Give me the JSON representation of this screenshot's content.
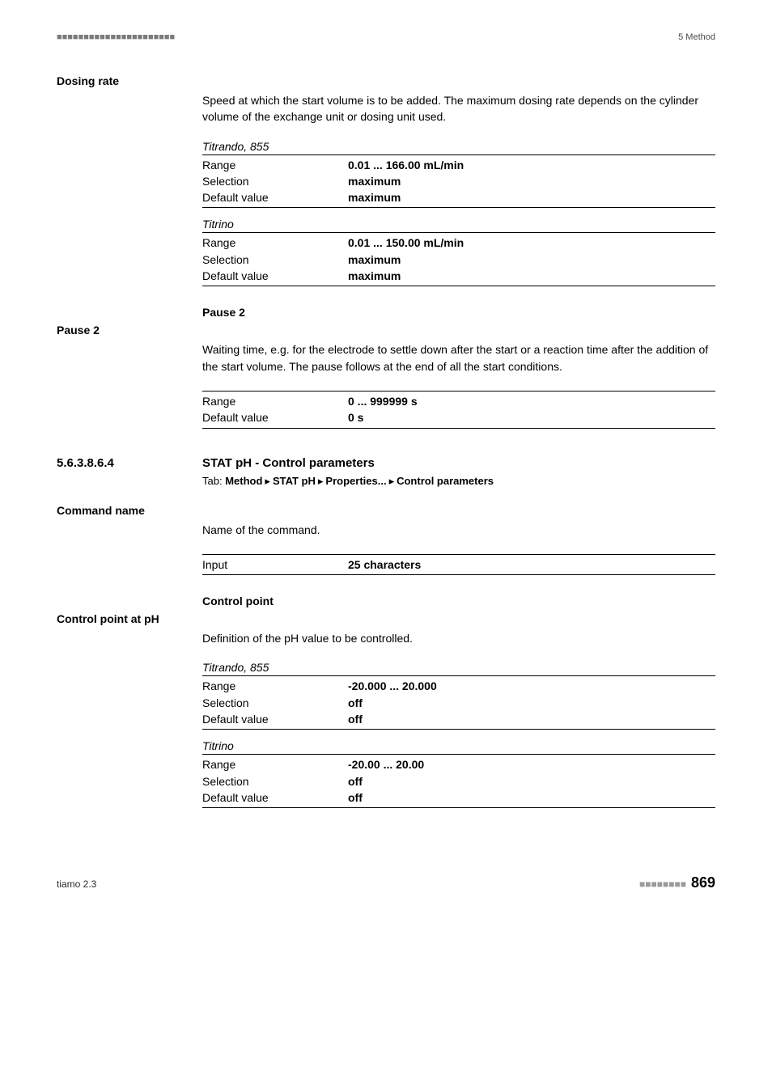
{
  "header": {
    "left_marks": "■■■■■■■■■■■■■■■■■■■■■■",
    "right": "5 Method"
  },
  "dosing_rate": {
    "label": "Dosing rate",
    "desc": "Speed at which the start volume is to be added. The maximum dosing rate depends on the cylinder volume of the exchange unit or dosing unit used.",
    "group1": {
      "heading": "Titrando, 855",
      "range_label": "Range",
      "range_value": "0.01 ... 166.00 mL/min",
      "sel_label": "Selection",
      "sel_value": "maximum",
      "def_label": "Default value",
      "def_value": "maximum"
    },
    "group2": {
      "heading": "Titrino",
      "range_label": "Range",
      "range_value": "0.01 ... 150.00 mL/min",
      "sel_label": "Selection",
      "sel_value": "maximum",
      "def_label": "Default value",
      "def_value": "maximum"
    }
  },
  "pause2": {
    "subhead": "Pause 2",
    "label": "Pause 2",
    "desc": "Waiting time, e.g. for the electrode to settle down after the start or a reaction time after the addition of the start volume. The pause follows at the end of all the start conditions.",
    "range_label": "Range",
    "range_value": "0 ... 999999 s",
    "def_label": "Default value",
    "def_value": "0 s"
  },
  "section": {
    "num": "5.6.3.8.6.4",
    "title": "STAT pH - Control parameters",
    "tab_label": "Tab: ",
    "p1": "Method",
    "p2": "STAT pH",
    "p3": "Properties...",
    "p4": "Control parameters",
    "arrow": "▸"
  },
  "command_name": {
    "label": "Command name",
    "desc": "Name of the command.",
    "input_label": "Input",
    "input_value": "25 characters"
  },
  "control_point": {
    "subhead": "Control point",
    "label": "Control point at pH",
    "desc": "Definition of the pH value to be controlled.",
    "group1": {
      "heading": "Titrando, 855",
      "range_label": "Range",
      "range_value": "-20.000 ... 20.000",
      "sel_label": "Selection",
      "sel_value": "off",
      "def_label": "Default value",
      "def_value": "off"
    },
    "group2": {
      "heading": "Titrino",
      "range_label": "Range",
      "range_value": "-20.00 ... 20.00",
      "sel_label": "Selection",
      "sel_value": "off",
      "def_label": "Default value",
      "def_value": "off"
    }
  },
  "footer": {
    "left": "tiamo 2.3",
    "dots": "■■■■■■■■",
    "page": "869"
  }
}
